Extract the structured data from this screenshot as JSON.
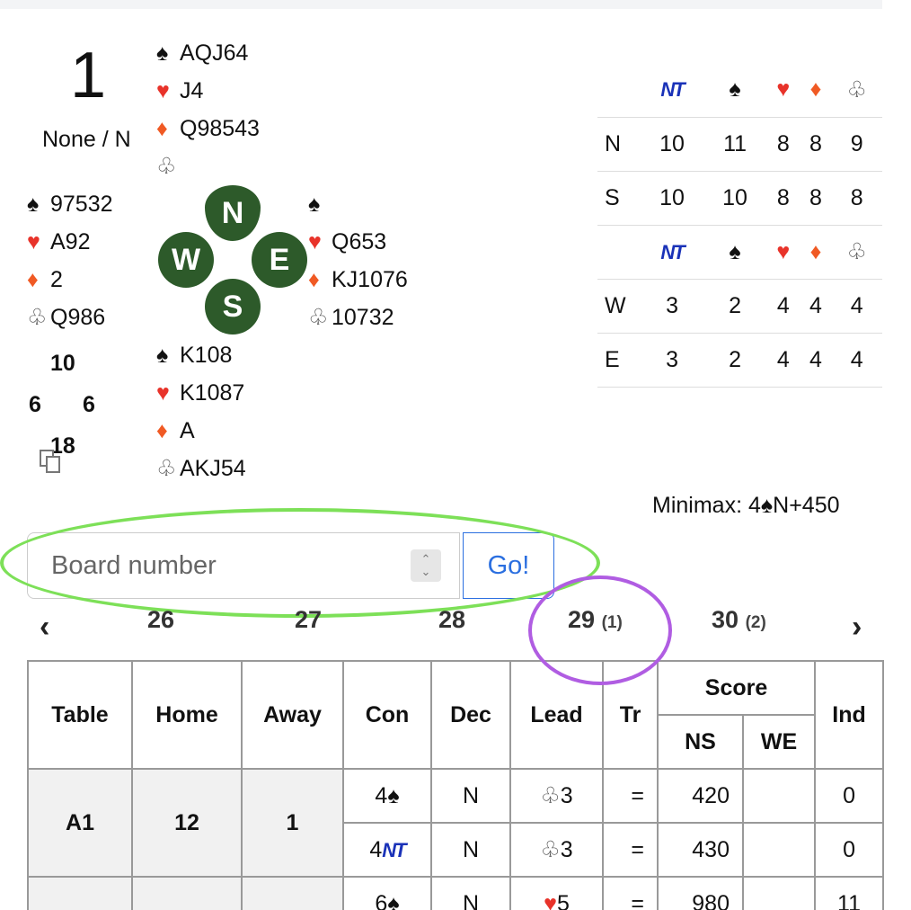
{
  "board": {
    "number": "1",
    "vul_dealer": "None / N",
    "north": {
      "spades": "AQJ64",
      "hearts": "J4",
      "diamonds": "Q98543",
      "clubs": ""
    },
    "west": {
      "spades": "97532",
      "hearts": "A92",
      "diamonds": "2",
      "clubs": "Q986"
    },
    "east": {
      "spades": "",
      "hearts": "Q653",
      "diamonds": "KJ1076",
      "clubs": "10732"
    },
    "south": {
      "spades": "K108",
      "hearts": "K1087",
      "diamonds": "A",
      "clubs": "AKJ54"
    },
    "hcp": {
      "north": "10",
      "west": "6",
      "east": "6",
      "south": "18"
    },
    "compass": {
      "n": "N",
      "e": "E",
      "s": "S",
      "w": "W"
    }
  },
  "dd_table": {
    "nt_label": "NT",
    "rows": [
      {
        "seat": "N",
        "vals": [
          "10",
          "11",
          "8",
          "8",
          "9"
        ]
      },
      {
        "seat": "S",
        "vals": [
          "10",
          "10",
          "8",
          "8",
          "8"
        ]
      },
      {
        "seat": "W",
        "vals": [
          "3",
          "2",
          "4",
          "4",
          "4"
        ]
      },
      {
        "seat": "E",
        "vals": [
          "3",
          "2",
          "4",
          "4",
          "4"
        ]
      }
    ]
  },
  "minimax": {
    "prefix": "Minimax: 4",
    "suffix": "N+450"
  },
  "search": {
    "placeholder": "Board number",
    "go_label": "Go!"
  },
  "pager": {
    "prev": "‹",
    "next": "›",
    "items": [
      {
        "label": "26",
        "count": ""
      },
      {
        "label": "27",
        "count": ""
      },
      {
        "label": "28",
        "count": ""
      },
      {
        "label": "29",
        "count": "(1)"
      },
      {
        "label": "30",
        "count": "(2)"
      }
    ]
  },
  "results": {
    "headers": {
      "table": "Table",
      "home": "Home",
      "away": "Away",
      "con": "Con",
      "dec": "Dec",
      "lead": "Lead",
      "tr": "Tr",
      "score": "Score",
      "ns": "NS",
      "we": "WE",
      "ind": "Ind"
    },
    "rows": [
      {
        "table": "A1",
        "home": "12",
        "away": "1",
        "con_level": "4",
        "con_strain": "spade",
        "dec": "N",
        "lead_suit": "club",
        "lead_card": "3",
        "tr": "=",
        "ns": "420",
        "we": "",
        "ind": "0"
      },
      {
        "table": "",
        "home": "",
        "away": "",
        "con_level": "4",
        "con_strain": "NT",
        "dec": "N",
        "lead_suit": "club",
        "lead_card": "3",
        "tr": "=",
        "ns": "430",
        "we": "",
        "ind": "0"
      },
      {
        "table": "",
        "home": "",
        "away": "",
        "con_level": "6",
        "con_strain": "spade",
        "dec": "N",
        "lead_suit": "heart",
        "lead_card": "5",
        "tr": "=",
        "ns": "980",
        "we": "",
        "ind": "11"
      }
    ]
  }
}
